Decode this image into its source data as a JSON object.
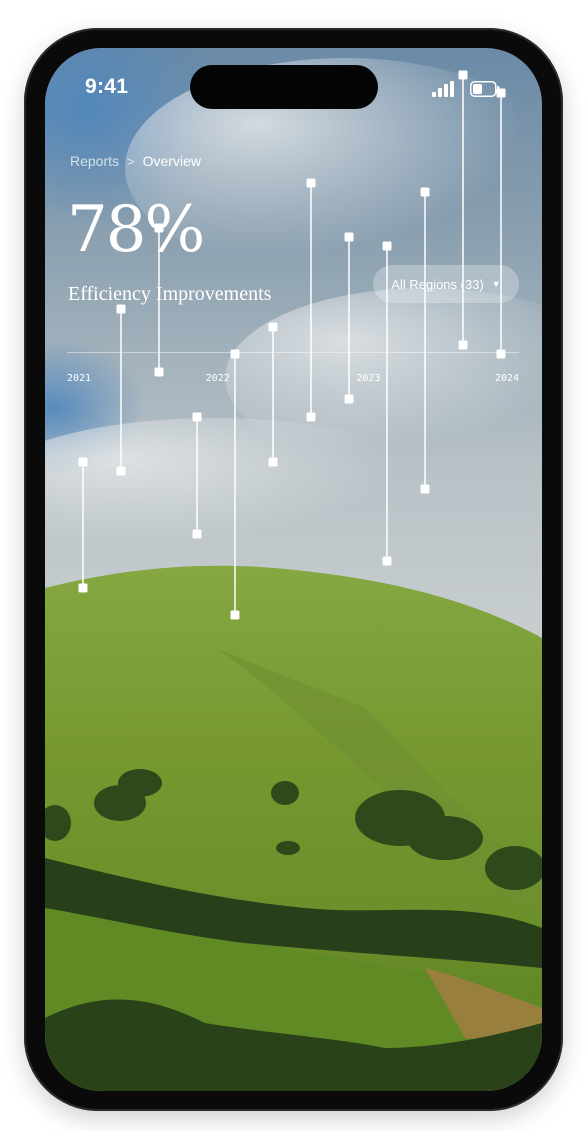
{
  "status_bar": {
    "time": "9:41"
  },
  "breadcrumb": {
    "parent": "Reports",
    "separator": ">",
    "current": "Overview"
  },
  "headline": {
    "value": "78%",
    "label": "Efficiency Improvements"
  },
  "filter": {
    "label": "All Regions (33)",
    "caret": "▼"
  },
  "chart_data": {
    "type": "range",
    "x_ticks": [
      "2021",
      "2022",
      "2023",
      "2024"
    ],
    "series": [
      {
        "low": 0.5,
        "high": 0.64
      },
      {
        "low": 0.63,
        "high": 0.81
      },
      {
        "low": 0.74,
        "high": 0.9
      },
      {
        "low": 0.56,
        "high": 0.69
      },
      {
        "low": 0.47,
        "high": 0.76
      },
      {
        "low": 0.64,
        "high": 0.79
      },
      {
        "low": 0.69,
        "high": 0.95
      },
      {
        "low": 0.71,
        "high": 0.89
      },
      {
        "low": 0.53,
        "high": 0.88
      },
      {
        "low": 0.61,
        "high": 0.94
      },
      {
        "low": 0.77,
        "high": 1.07
      },
      {
        "low": 0.76,
        "high": 1.05
      }
    ],
    "marker_color": "#ffffff"
  },
  "colors": {
    "text": "#ffffff",
    "pill_bg": "rgba(255,255,255,0.28)"
  }
}
